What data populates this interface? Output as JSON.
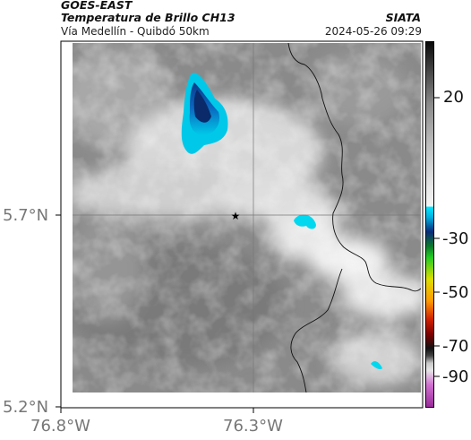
{
  "header": {
    "satellite": "GOES-EAST",
    "product": "Temperatura de Brillo CH13",
    "region": "Vía Medellín - Quibdó 50km",
    "organization": "SIATA",
    "datetime": "2024-05-26 09:29"
  },
  "map": {
    "lat_ticks": [
      "5.7°N",
      "5.2°N"
    ],
    "lon_ticks": [
      "76.8°W",
      "76.3°W"
    ],
    "marker_icon": "star-icon",
    "cold_cloud_color": "#00c8e8",
    "deep_cold_color": "#0a3a8a"
  },
  "colorbar": {
    "labels": [
      "20",
      "-30",
      "-50",
      "-70",
      "-90"
    ],
    "stops": [
      {
        "value": 40,
        "color": "#101010"
      },
      {
        "value": 20,
        "color": "#808080"
      },
      {
        "value": -25,
        "color": "#f2f2f2"
      },
      {
        "value": -26,
        "color": "#00e0ff"
      },
      {
        "value": -30,
        "color": "#0a2a7a"
      },
      {
        "value": -35,
        "color": "#00aa00"
      },
      {
        "value": -45,
        "color": "#ffff00"
      },
      {
        "value": -55,
        "color": "#ff6600"
      },
      {
        "value": -62,
        "color": "#aa0000"
      },
      {
        "value": -70,
        "color": "#000000"
      },
      {
        "value": -80,
        "color": "#c8c8c8"
      },
      {
        "value": -90,
        "color": "#aa22aa"
      }
    ]
  }
}
